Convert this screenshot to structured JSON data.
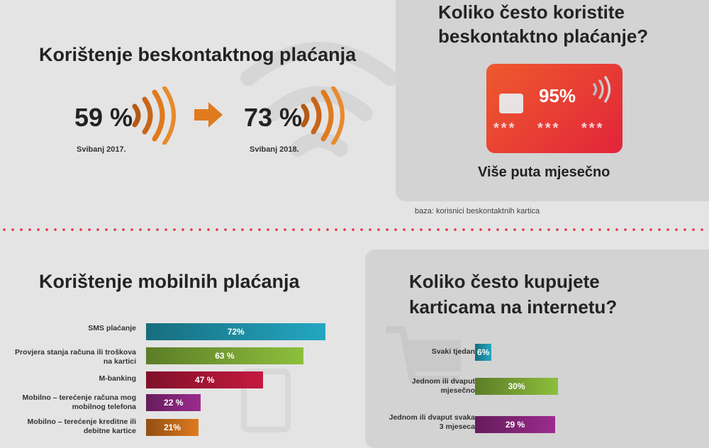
{
  "contactless": {
    "title": "Korištenje beskontaktnog plaćanja",
    "value_2017": "59 %",
    "label_2017": "Svibanj 2017.",
    "value_2018": "73 %",
    "label_2018": "Svibanj 2018.",
    "accent_color": "#e07a1f"
  },
  "frequency": {
    "title_line1": "Koliko često koristite",
    "title_line2": "beskontaktno plaćanje?",
    "card_value": "95%",
    "card_stars": [
      "***",
      "***",
      "***"
    ],
    "caption": "Više puta mjesečno",
    "base_note": "baza: korisnici beskontaktnih kartica",
    "card_color": "#e8432a"
  },
  "chart_data": [
    {
      "type": "bar",
      "title": "Korištenje mobilnih plaćanja",
      "categories": [
        "SMS plaćanje",
        "Provjera stanja računa ili troškova na kartici",
        "M-banking",
        "Mobilno – terećenje računa mog mobilnog telefona",
        "Mobilno – terećenje kreditne ili debitne kartice"
      ],
      "values": [
        72,
        63,
        47,
        22,
        21
      ],
      "value_labels": [
        "72%",
        "63 %",
        "47 %",
        "22 %",
        "21%"
      ],
      "colors": [
        "#24a7c2",
        "#8dbf3c",
        "#c5193f",
        "#9c2b8e",
        "#e07a1f"
      ],
      "orientation": "horizontal",
      "xlim": [
        0,
        100
      ]
    },
    {
      "type": "bar",
      "title": "Koliko često kupujete karticama na internetu?",
      "categories": [
        "Svaki tjedan",
        "Jednom ili dvaput mjesečno",
        "Jednom ili dvaput svaka 3 mjeseca"
      ],
      "values": [
        6,
        30,
        29
      ],
      "value_labels": [
        "6%",
        "30%",
        "29 %"
      ],
      "colors": [
        "#24a7c2",
        "#8dbf3c",
        "#9c2b8e"
      ],
      "orientation": "horizontal",
      "xlim": [
        0,
        100
      ]
    }
  ],
  "mobile": {
    "title": "Korištenje mobilnih plaćanja",
    "labels": [
      "SMS plaćanje",
      "Provjera stanja računa ili troškova na kartici",
      "M-banking",
      "Mobilno – terećenje računa mog mobilnog telefona",
      "Mobilno – terećenje kreditne ili debitne kartice"
    ]
  },
  "online": {
    "title_line1": "Koliko često kupujete",
    "title_line2": "karticama na internetu?",
    "labels": [
      "Svaki tjedan",
      "Jednom ili dvaput mjesečno",
      "Jednom ili dvaput svaka 3 mjeseca"
    ]
  }
}
